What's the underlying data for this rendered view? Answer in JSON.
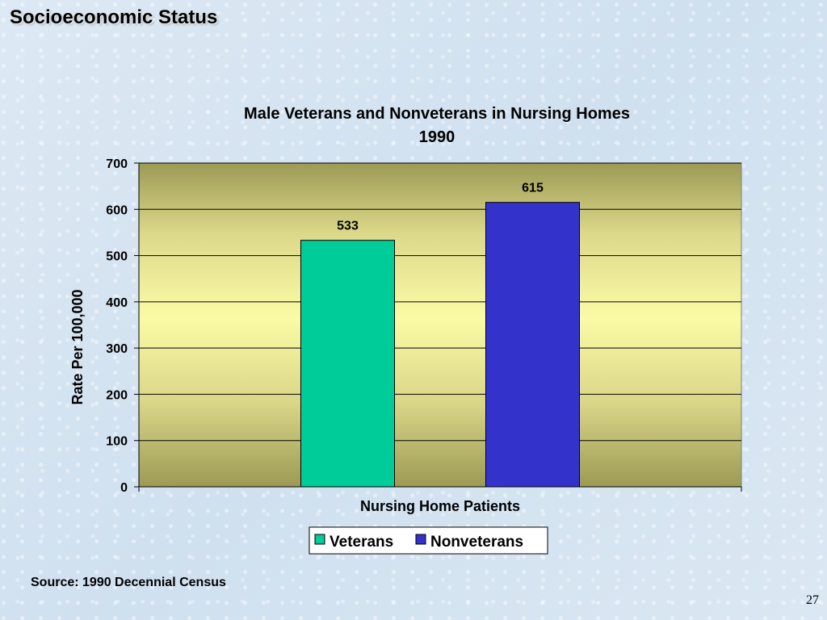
{
  "slide": {
    "title": "Socioeconomic Status",
    "source": "Source:  1990 Decennial Census",
    "page_number": "27"
  },
  "chart_data": {
    "type": "bar",
    "title": "Male Veterans and Nonveterans in Nursing Homes",
    "subtitle": "1990",
    "xlabel": "Nursing Home Patients",
    "ylabel": "Rate Per 100,000",
    "ylim": [
      0,
      700
    ],
    "yticks": [
      0,
      100,
      200,
      300,
      400,
      500,
      600,
      700
    ],
    "grid": true,
    "legend": "bottom",
    "categories": [
      "Nursing Home Patients"
    ],
    "series": [
      {
        "name": "Veterans",
        "values": [
          533
        ],
        "color": "#00cc99",
        "label": "533"
      },
      {
        "name": "Nonveterans",
        "values": [
          615
        ],
        "color": "#3333cc",
        "label": "615"
      }
    ]
  }
}
